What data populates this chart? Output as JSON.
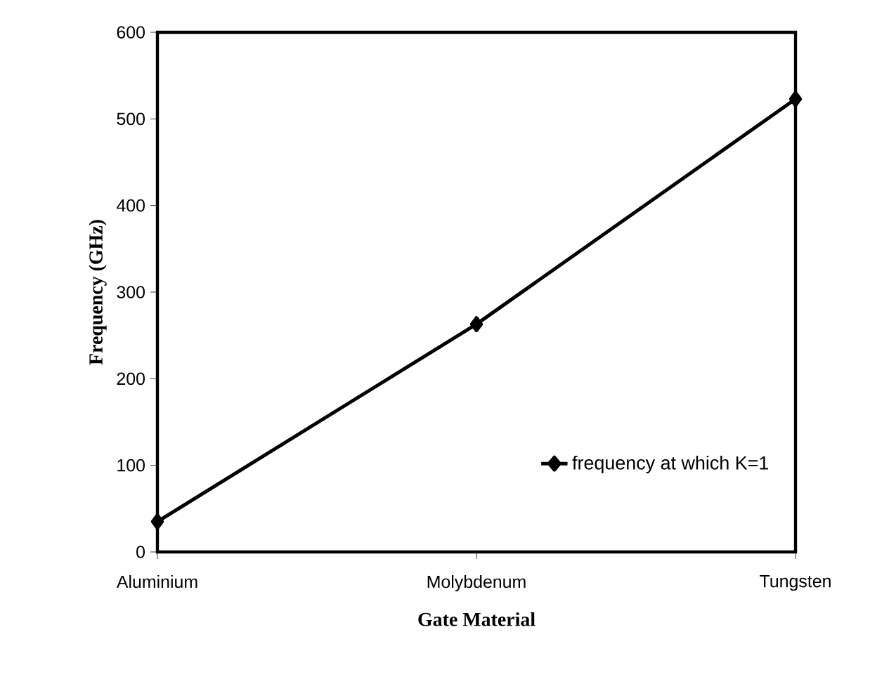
{
  "chart_data": {
    "type": "line",
    "xlabel": "Gate Material",
    "ylabel": "Frequency (GHz)",
    "categories": [
      "Aluminium",
      "Molybdenum",
      "Tungsten"
    ],
    "series": [
      {
        "name": "frequency at which K=1",
        "color": "#000000",
        "values": [
          35,
          263,
          523
        ]
      }
    ],
    "ylim": [
      0,
      600
    ],
    "yticks": [
      0,
      100,
      200,
      300,
      400,
      500,
      600
    ],
    "marker": "diamond",
    "line_style": "solid",
    "legend": "bottom right",
    "grid": false
  }
}
